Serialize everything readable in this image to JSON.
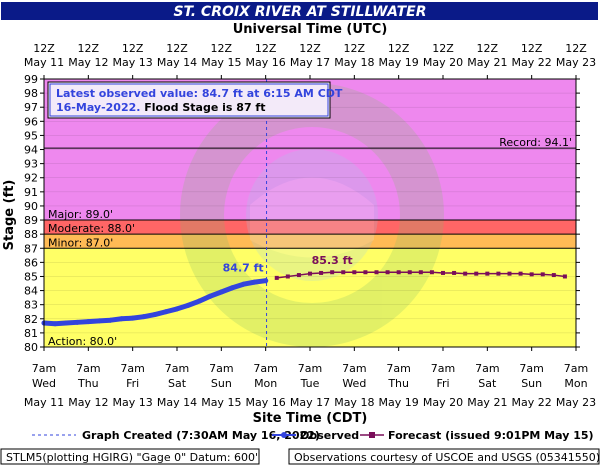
{
  "chart_data": {
    "type": "line",
    "title": "ST. CROIX RIVER AT STILLWATER",
    "top_axis_title": "Universal Time (UTC)",
    "xlabel": "Site Time (CDT)",
    "ylabel": "Stage (ft)",
    "ylim": [
      80,
      99
    ],
    "y_ticks": [
      80,
      81,
      82,
      83,
      84,
      85,
      86,
      87,
      88,
      89,
      90,
      91,
      92,
      93,
      94,
      95,
      96,
      97,
      98,
      99
    ],
    "x_days": 12,
    "top_ticks": [
      {
        "a": "12Z",
        "b": "May 11"
      },
      {
        "a": "12Z",
        "b": "May 12"
      },
      {
        "a": "12Z",
        "b": "May 13"
      },
      {
        "a": "12Z",
        "b": "May 14"
      },
      {
        "a": "12Z",
        "b": "May 15"
      },
      {
        "a": "12Z",
        "b": "May 16"
      },
      {
        "a": "12Z",
        "b": "May 17"
      },
      {
        "a": "12Z",
        "b": "May 18"
      },
      {
        "a": "12Z",
        "b": "May 19"
      },
      {
        "a": "12Z",
        "b": "May 20"
      },
      {
        "a": "12Z",
        "b": "May 21"
      },
      {
        "a": "12Z",
        "b": "May 22"
      },
      {
        "a": "12Z",
        "b": "May 23"
      }
    ],
    "bottom_ticks": [
      {
        "a": "7am",
        "b": "Wed",
        "c": "May 11"
      },
      {
        "a": "7am",
        "b": "Thu",
        "c": "May 12"
      },
      {
        "a": "7am",
        "b": "Fri",
        "c": "May 13"
      },
      {
        "a": "7am",
        "b": "Sat",
        "c": "May 14"
      },
      {
        "a": "7am",
        "b": "Sun",
        "c": "May 15"
      },
      {
        "a": "7am",
        "b": "Mon",
        "c": "May 16"
      },
      {
        "a": "7am",
        "b": "Tue",
        "c": "May 17"
      },
      {
        "a": "7am",
        "b": "Wed",
        "c": "May 18"
      },
      {
        "a": "7am",
        "b": "Thu",
        "c": "May 19"
      },
      {
        "a": "7am",
        "b": "Fri",
        "c": "May 20"
      },
      {
        "a": "7am",
        "b": "Sat",
        "c": "May 21"
      },
      {
        "a": "7am",
        "b": "Sun",
        "c": "May 22"
      },
      {
        "a": "7am",
        "b": "Mon",
        "c": "May 23"
      }
    ],
    "flood_zones": [
      {
        "name": "Action",
        "from": 80,
        "to": 87,
        "color": "#ffff66"
      },
      {
        "name": "Minor",
        "from": 87,
        "to": 88,
        "color": "#ffbb55"
      },
      {
        "name": "Moderate",
        "from": 88,
        "to": 89,
        "color": "#ff6666"
      },
      {
        "name": "Major",
        "from": 89,
        "to": 99,
        "color": "#ee88ee"
      }
    ],
    "stage_labels": [
      {
        "text": "Major: 89.0'",
        "y": 89,
        "align": "left"
      },
      {
        "text": "Moderate: 88.0'",
        "y": 88,
        "align": "left"
      },
      {
        "text": "Minor: 87.0'",
        "y": 87,
        "align": "left"
      },
      {
        "text": "Action: 80.0'",
        "y": 80,
        "align": "left"
      },
      {
        "text": "Record: 94.1'",
        "y": 94.1,
        "align": "right"
      }
    ],
    "graph_created_day": 5.02,
    "observed": {
      "name": "Observed",
      "color": "#3344dd",
      "x": [
        0,
        0.25,
        0.5,
        0.75,
        1,
        1.25,
        1.5,
        1.75,
        2,
        2.25,
        2.5,
        2.75,
        3,
        3.25,
        3.5,
        3.75,
        4,
        4.25,
        4.5,
        4.75,
        5.0
      ],
      "y": [
        81.7,
        81.65,
        81.7,
        81.75,
        81.8,
        81.85,
        81.9,
        82.0,
        82.05,
        82.15,
        82.3,
        82.5,
        82.7,
        82.95,
        83.25,
        83.6,
        83.9,
        84.2,
        84.45,
        84.6,
        84.7
      ]
    },
    "forecast": {
      "name": "Forecast (issued 9:01PM May 15)",
      "color": "#7a0e5a",
      "x": [
        5.25,
        5.5,
        5.75,
        6.0,
        6.25,
        6.5,
        6.75,
        7.0,
        7.25,
        7.5,
        7.75,
        8.0,
        8.25,
        8.5,
        8.75,
        9.0,
        9.25,
        9.5,
        9.75,
        10.0,
        10.25,
        10.5,
        10.75,
        11.0,
        11.25,
        11.5,
        11.75
      ],
      "y": [
        84.9,
        85.0,
        85.1,
        85.2,
        85.25,
        85.3,
        85.3,
        85.3,
        85.3,
        85.3,
        85.3,
        85.3,
        85.3,
        85.3,
        85.3,
        85.25,
        85.25,
        85.2,
        85.2,
        85.2,
        85.2,
        85.2,
        85.2,
        85.15,
        85.15,
        85.1,
        85.0
      ]
    },
    "observed_label": "84.7 ft",
    "forecast_label": "85.3 ft",
    "info_line1": "Latest observed value: 84.7 ft at 6:15 AM CDT",
    "info_line2a": "16-May-2022.",
    "info_line2b": " Flood Stage is 87 ft",
    "legend_created": "Graph Created (7:30AM May 16, 2022)",
    "legend_observed": "Observed",
    "legend_forecast": "Forecast (issued 9:01PM May 15)",
    "footer_left": "STLM5(plotting HGIRG) \"Gage 0\" Datum: 600'",
    "footer_right": "Observations courtesy of USCOE and USGS (05341550)",
    "colors": {
      "title_bg": "#0a1a88",
      "grid": "#000000",
      "plot_border": "#000000"
    }
  }
}
